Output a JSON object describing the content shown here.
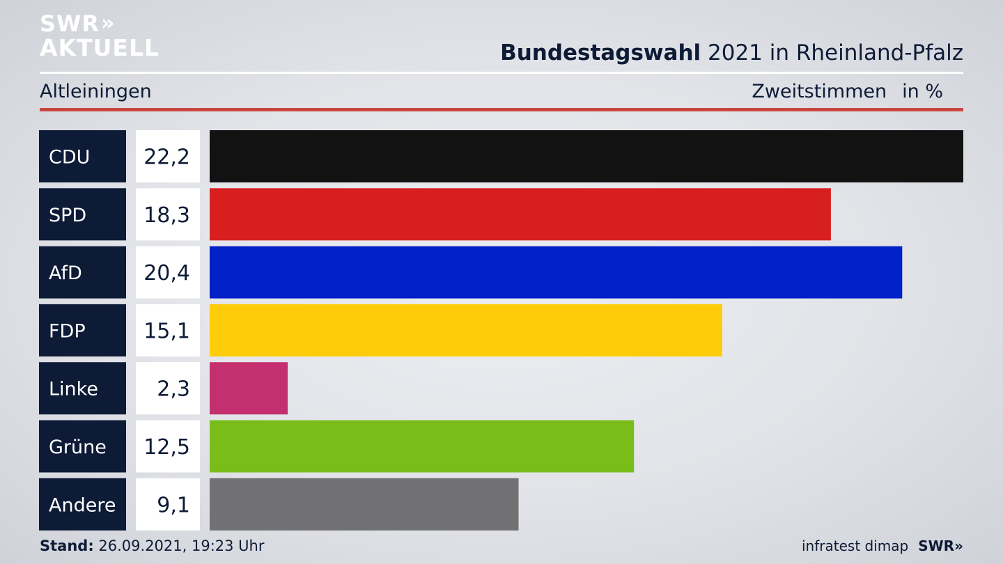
{
  "brand": {
    "logo_line1": "SWR",
    "logo_arrows": "»",
    "logo_line2": "AKTUELL",
    "footer_logo": "SWR»",
    "source": "infratest dimap"
  },
  "header": {
    "title_bold": "Bundestagswahl",
    "title_rest": " 2021 in Rheinland-Pfalz",
    "location": "Altleiningen",
    "vote_type": "Zweitstimmen",
    "unit": "in %"
  },
  "footer": {
    "stand_label": "Stand:",
    "stand_value": " 26.09.2021, 19:23 Uhr"
  },
  "chart_data": {
    "type": "bar",
    "orientation": "horizontal",
    "categories": [
      "CDU",
      "SPD",
      "AfD",
      "FDP",
      "Linke",
      "Grüne",
      "Andere"
    ],
    "values": [
      22.2,
      18.3,
      20.4,
      15.1,
      2.3,
      12.5,
      9.1
    ],
    "value_labels": [
      "22,2",
      "18,3",
      "20,4",
      "15,1",
      "2,3",
      "12,5",
      "9,1"
    ],
    "colors": [
      "#121212",
      "#d81f1f",
      "#0020c8",
      "#ffcc0a",
      "#c4306f",
      "#79bd1b",
      "#717174"
    ],
    "xlim": [
      0,
      22.2
    ],
    "grid": false,
    "legend": "none"
  }
}
